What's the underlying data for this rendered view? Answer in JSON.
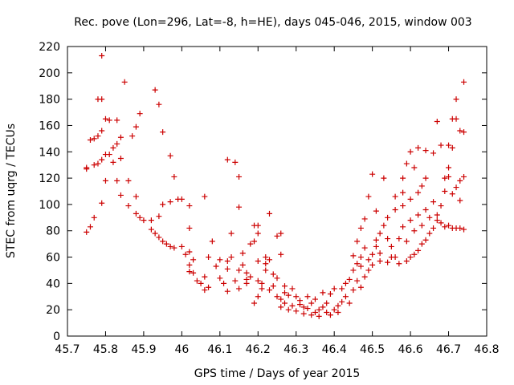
{
  "chart_data": {
    "type": "scatter",
    "title": "Rec. pove (Lon=296, Lat=-8, h=HE), days 045-046, 2015, window 003",
    "xlabel": "GPS time / Days of year 2015",
    "ylabel": "STEC from uqrg / TECUs",
    "xlim": [
      45.7,
      46.8
    ],
    "ylim": [
      0,
      220
    ],
    "xticks": [
      "45.7",
      "45.8",
      "45.9",
      "46",
      "46.1",
      "46.2",
      "46.3",
      "46.4",
      "46.5",
      "46.6",
      "46.7",
      "46.8"
    ],
    "yticks": [
      "0",
      "20",
      "40",
      "60",
      "80",
      "100",
      "120",
      "140",
      "160",
      "180",
      "200",
      "220"
    ],
    "grid": false,
    "marker": "+",
    "color": "#cc0000",
    "series": [
      {
        "name": "",
        "points": [
          [
            45.79,
            213
          ],
          [
            45.78,
            180
          ],
          [
            45.79,
            180
          ],
          [
            45.85,
            193
          ],
          [
            45.93,
            187
          ],
          [
            45.94,
            176
          ],
          [
            45.77,
            150
          ],
          [
            45.76,
            149
          ],
          [
            45.78,
            152
          ],
          [
            45.79,
            156
          ],
          [
            45.8,
            165
          ],
          [
            45.81,
            164
          ],
          [
            45.83,
            164
          ],
          [
            45.89,
            169
          ],
          [
            45.84,
            151
          ],
          [
            45.87,
            152
          ],
          [
            45.83,
            146
          ],
          [
            45.88,
            159
          ],
          [
            45.82,
            143
          ],
          [
            45.95,
            155
          ],
          [
            45.8,
            138
          ],
          [
            45.81,
            138
          ],
          [
            45.84,
            135
          ],
          [
            45.97,
            137
          ],
          [
            45.75,
            128
          ],
          [
            45.75,
            127
          ],
          [
            45.77,
            130
          ],
          [
            45.78,
            131
          ],
          [
            45.79,
            134
          ],
          [
            45.82,
            132
          ],
          [
            45.8,
            118
          ],
          [
            45.83,
            118
          ],
          [
            45.86,
            118
          ],
          [
            45.98,
            121
          ],
          [
            45.84,
            107
          ],
          [
            45.88,
            106
          ],
          [
            45.79,
            101
          ],
          [
            45.86,
            99
          ],
          [
            45.88,
            93
          ],
          [
            45.89,
            90
          ],
          [
            45.9,
            88
          ],
          [
            45.92,
            88
          ],
          [
            45.94,
            91
          ],
          [
            45.95,
            100
          ],
          [
            45.97,
            102
          ],
          [
            45.99,
            104
          ],
          [
            46.0,
            104
          ],
          [
            45.77,
            90
          ],
          [
            45.76,
            83
          ],
          [
            45.75,
            79
          ],
          [
            45.92,
            81
          ],
          [
            45.93,
            78
          ],
          [
            45.94,
            75
          ],
          [
            45.95,
            72
          ],
          [
            45.96,
            70
          ],
          [
            45.97,
            68
          ],
          [
            45.98,
            67
          ],
          [
            46.0,
            68
          ],
          [
            46.02,
            82
          ],
          [
            46.02,
            99
          ],
          [
            46.01,
            62
          ],
          [
            46.02,
            64
          ],
          [
            46.03,
            58
          ],
          [
            46.02,
            54
          ],
          [
            46.02,
            49
          ],
          [
            46.03,
            48
          ],
          [
            46.04,
            42
          ],
          [
            46.05,
            40
          ],
          [
            46.06,
            45
          ],
          [
            46.06,
            35
          ],
          [
            46.07,
            37
          ],
          [
            46.07,
            60
          ],
          [
            46.08,
            72
          ],
          [
            46.06,
            106
          ],
          [
            46.09,
            53
          ],
          [
            46.1,
            58
          ],
          [
            46.1,
            44
          ],
          [
            46.11,
            40
          ],
          [
            46.12,
            34
          ],
          [
            46.12,
            51
          ],
          [
            46.12,
            57
          ],
          [
            46.13,
            60
          ],
          [
            46.13,
            78
          ],
          [
            46.12,
            134
          ],
          [
            46.14,
            132
          ],
          [
            46.15,
            121
          ],
          [
            46.15,
            98
          ],
          [
            46.14,
            42
          ],
          [
            46.15,
            36
          ],
          [
            46.15,
            50
          ],
          [
            46.16,
            63
          ],
          [
            46.16,
            54
          ],
          [
            46.17,
            48
          ],
          [
            46.17,
            43
          ],
          [
            46.17,
            40
          ],
          [
            46.18,
            45
          ],
          [
            46.18,
            70
          ],
          [
            46.19,
            84
          ],
          [
            46.19,
            72
          ],
          [
            46.2,
            57
          ],
          [
            46.2,
            84
          ],
          [
            46.2,
            78
          ],
          [
            46.19,
            25
          ],
          [
            46.2,
            30
          ],
          [
            46.2,
            42
          ],
          [
            46.21,
            40
          ],
          [
            46.21,
            36
          ],
          [
            46.22,
            50
          ],
          [
            46.22,
            55
          ],
          [
            46.22,
            60
          ],
          [
            46.23,
            93
          ],
          [
            46.23,
            58
          ],
          [
            46.23,
            35
          ],
          [
            46.24,
            38
          ],
          [
            46.24,
            47
          ],
          [
            46.25,
            44
          ],
          [
            46.25,
            76
          ],
          [
            46.26,
            78
          ],
          [
            46.26,
            62
          ],
          [
            46.25,
            30
          ],
          [
            46.26,
            28
          ],
          [
            46.26,
            22
          ],
          [
            46.27,
            25
          ],
          [
            46.27,
            33
          ],
          [
            46.27,
            38
          ],
          [
            46.28,
            31
          ],
          [
            46.28,
            20
          ],
          [
            46.29,
            23
          ],
          [
            46.29,
            36
          ],
          [
            46.3,
            30
          ],
          [
            46.3,
            19
          ],
          [
            46.31,
            24
          ],
          [
            46.31,
            27
          ],
          [
            46.32,
            17
          ],
          [
            46.32,
            22
          ],
          [
            46.33,
            30
          ],
          [
            46.33,
            21
          ],
          [
            46.34,
            16
          ],
          [
            46.34,
            25
          ],
          [
            46.35,
            18
          ],
          [
            46.35,
            28
          ],
          [
            46.36,
            20
          ],
          [
            46.36,
            15
          ],
          [
            46.37,
            33
          ],
          [
            46.37,
            22
          ],
          [
            46.38,
            18
          ],
          [
            46.38,
            25
          ],
          [
            46.39,
            16
          ],
          [
            46.39,
            32
          ],
          [
            46.4,
            20
          ],
          [
            46.4,
            36
          ],
          [
            46.41,
            23
          ],
          [
            46.41,
            18
          ],
          [
            46.42,
            26
          ],
          [
            46.42,
            36
          ],
          [
            46.43,
            30
          ],
          [
            46.43,
            40
          ],
          [
            46.44,
            25
          ],
          [
            46.44,
            43
          ],
          [
            46.45,
            35
          ],
          [
            46.45,
            50
          ],
          [
            46.45,
            61
          ],
          [
            46.46,
            42
          ],
          [
            46.46,
            55
          ],
          [
            46.46,
            72
          ],
          [
            46.47,
            37
          ],
          [
            46.47,
            53
          ],
          [
            46.47,
            60
          ],
          [
            46.47,
            82
          ],
          [
            46.48,
            45
          ],
          [
            46.48,
            67
          ],
          [
            46.48,
            89
          ],
          [
            46.49,
            58
          ],
          [
            46.49,
            50
          ],
          [
            46.49,
            106
          ],
          [
            46.5,
            54
          ],
          [
            46.5,
            62
          ],
          [
            46.5,
            123
          ],
          [
            46.51,
            73
          ],
          [
            46.51,
            68
          ],
          [
            46.51,
            95
          ],
          [
            46.52,
            57
          ],
          [
            46.52,
            63
          ],
          [
            46.52,
            78
          ],
          [
            46.53,
            120
          ],
          [
            46.53,
            84
          ],
          [
            46.54,
            74
          ],
          [
            46.54,
            56
          ],
          [
            46.54,
            90
          ],
          [
            46.55,
            60
          ],
          [
            46.55,
            68
          ],
          [
            46.56,
            96
          ],
          [
            46.56,
            106
          ],
          [
            46.56,
            60
          ],
          [
            46.57,
            55
          ],
          [
            46.57,
            74
          ],
          [
            46.58,
            83
          ],
          [
            46.58,
            99
          ],
          [
            46.58,
            109
          ],
          [
            46.58,
            120
          ],
          [
            46.59,
            57
          ],
          [
            46.59,
            72
          ],
          [
            46.59,
            131
          ],
          [
            46.6,
            60
          ],
          [
            46.6,
            88
          ],
          [
            46.6,
            104
          ],
          [
            46.6,
            140
          ],
          [
            46.61,
            62
          ],
          [
            46.61,
            80
          ],
          [
            46.61,
            128
          ],
          [
            46.62,
            65
          ],
          [
            46.62,
            92
          ],
          [
            46.62,
            109
          ],
          [
            46.62,
            143
          ],
          [
            46.63,
            70
          ],
          [
            46.63,
            84
          ],
          [
            46.63,
            114
          ],
          [
            46.64,
            73
          ],
          [
            46.64,
            96
          ],
          [
            46.64,
            120
          ],
          [
            46.64,
            141
          ],
          [
            46.65,
            78
          ],
          [
            46.65,
            90
          ],
          [
            46.66,
            82
          ],
          [
            46.66,
            102
          ],
          [
            46.66,
            139
          ],
          [
            46.67,
            88
          ],
          [
            46.67,
            92
          ],
          [
            46.67,
            163
          ],
          [
            46.68,
            86
          ],
          [
            46.68,
            99
          ],
          [
            46.68,
            145
          ],
          [
            46.69,
            83
          ],
          [
            46.69,
            120
          ],
          [
            46.7,
            84
          ],
          [
            46.7,
            128
          ],
          [
            46.7,
            145
          ],
          [
            46.71,
            82
          ],
          [
            46.71,
            108
          ],
          [
            46.71,
            165
          ],
          [
            46.72,
            82
          ],
          [
            46.72,
            113
          ],
          [
            46.72,
            180
          ],
          [
            46.73,
            82
          ],
          [
            46.73,
            156
          ],
          [
            46.73,
            118
          ],
          [
            46.74,
            81
          ],
          [
            46.74,
            121
          ],
          [
            46.74,
            155
          ],
          [
            46.74,
            193
          ],
          [
            46.72,
            165
          ],
          [
            46.71,
            143
          ],
          [
            46.7,
            121
          ],
          [
            46.69,
            110
          ],
          [
            46.73,
            103
          ]
        ]
      }
    ]
  }
}
